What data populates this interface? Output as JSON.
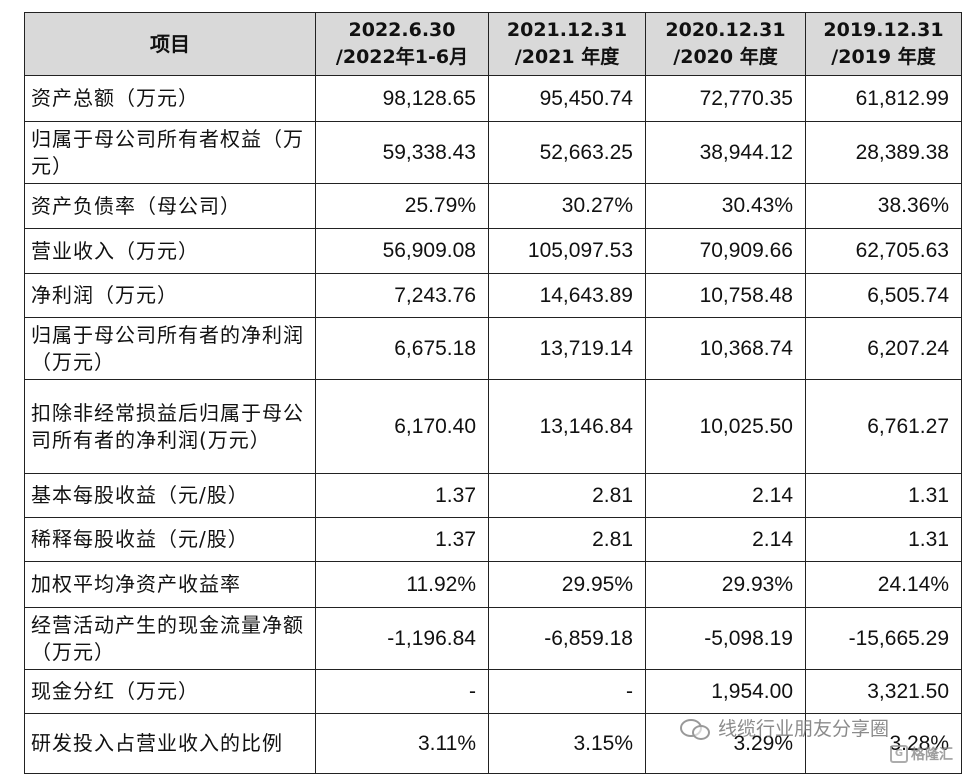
{
  "table": {
    "headers": [
      [
        "项目"
      ],
      [
        "2022.6.30",
        "/2022年1-6月"
      ],
      [
        "2021.12.31",
        "/2021 年度"
      ],
      [
        "2020.12.31",
        "/2020 年度"
      ],
      [
        "2019.12.31",
        "/2019 年度"
      ]
    ],
    "rows": [
      {
        "label": "资产总额（万元）",
        "values": [
          "98,128.65",
          "95,450.74",
          "72,770.35",
          "61,812.99"
        ]
      },
      {
        "label": "归属于母公司所有者权益（万元）",
        "values": [
          "59,338.43",
          "52,663.25",
          "38,944.12",
          "28,389.38"
        ]
      },
      {
        "label": "资产负债率（母公司）",
        "values": [
          "25.79%",
          "30.27%",
          "30.43%",
          "38.36%"
        ]
      },
      {
        "label": "营业收入（万元）",
        "values": [
          "56,909.08",
          "105,097.53",
          "70,909.66",
          "62,705.63"
        ]
      },
      {
        "label": "净利润（万元）",
        "values": [
          "7,243.76",
          "14,643.89",
          "10,758.48",
          "6,505.74"
        ]
      },
      {
        "label": "归属于母公司所有者的净利润（万元）",
        "values": [
          "6,675.18",
          "13,719.14",
          "10,368.74",
          "6,207.24"
        ]
      },
      {
        "label": "扣除非经常损益后归属于母公司所有者的净利润(万元）",
        "values": [
          "6,170.40",
          "13,146.84",
          "10,025.50",
          "6,761.27"
        ]
      },
      {
        "label": "基本每股收益（元/股）",
        "values": [
          "1.37",
          "2.81",
          "2.14",
          "1.31"
        ]
      },
      {
        "label": "稀释每股收益（元/股）",
        "values": [
          "1.37",
          "2.81",
          "2.14",
          "1.31"
        ]
      },
      {
        "label": "加权平均净资产收益率",
        "values": [
          "11.92%",
          "29.95%",
          "29.93%",
          "24.14%"
        ]
      },
      {
        "label": "经营活动产生的现金流量净额（万元）",
        "values": [
          "-1,196.84",
          "-6,859.18",
          "-5,098.19",
          "-15,665.29"
        ]
      },
      {
        "label": "现金分红（万元）",
        "values": [
          "-",
          "-",
          "1,954.00",
          "3,321.50"
        ]
      },
      {
        "label": "研发投入占营业收入的比例",
        "values": [
          "3.11%",
          "3.15%",
          "3.29%",
          "3.28%"
        ]
      }
    ]
  },
  "watermark": {
    "text": "线缆行业朋友分享圈",
    "brand": "格隆汇"
  }
}
